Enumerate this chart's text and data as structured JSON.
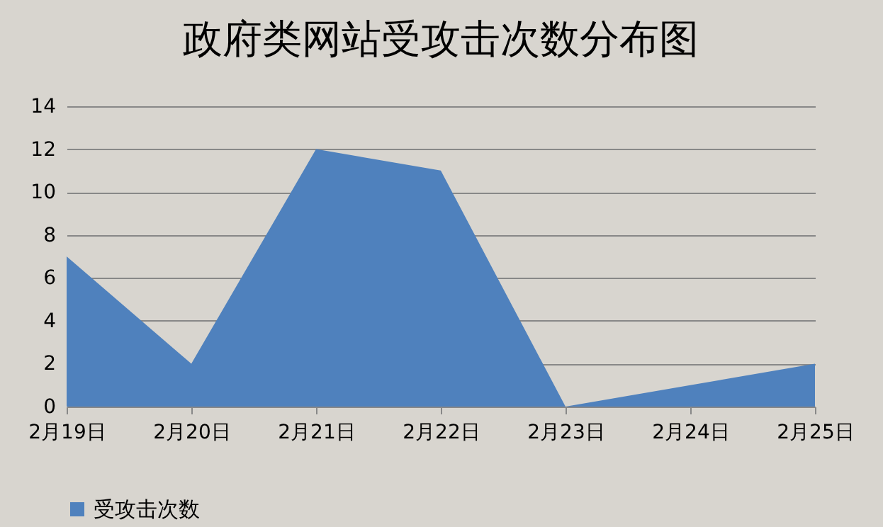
{
  "chart_data": {
    "type": "area",
    "title": "政府类网站受攻击次数分布图",
    "categories": [
      "2月19日",
      "2月20日",
      "2月21日",
      "2月22日",
      "2月23日",
      "2月24日",
      "2月25日"
    ],
    "series": [
      {
        "name": "受攻击次数",
        "color": "#4f81bd",
        "values": [
          7,
          2,
          12,
          11,
          0,
          1,
          2
        ]
      }
    ],
    "ylim": [
      0,
      14
    ],
    "yticks": [
      0,
      2,
      4,
      6,
      8,
      10,
      12,
      14
    ],
    "grid": "y",
    "legend": "bottom"
  }
}
